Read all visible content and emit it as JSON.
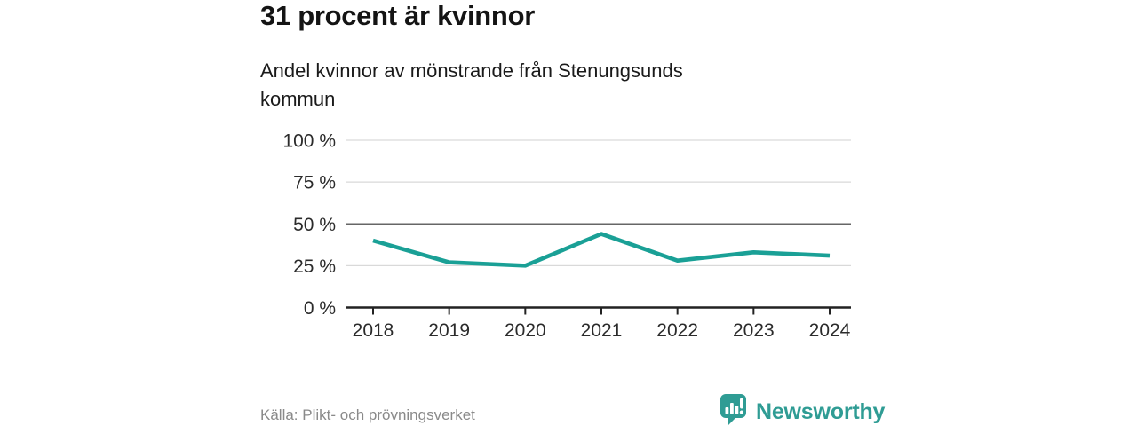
{
  "chart_data": {
    "type": "line",
    "title": "31 procent är kvinnor",
    "subtitle": "Andel kvinnor av mönstrande från Stenungsunds kommun",
    "x": [
      "2018",
      "2019",
      "2020",
      "2021",
      "2022",
      "2023",
      "2024"
    ],
    "series": [
      {
        "name": "Andel kvinnor av mönstrande",
        "values": [
          40,
          27,
          25,
          44,
          28,
          33,
          31
        ]
      }
    ],
    "unit": "%",
    "ylim": [
      0,
      100
    ],
    "yticks": [
      0,
      25,
      50,
      75,
      100
    ],
    "ytick_labels": [
      "0 %",
      "25 %",
      "50 %",
      "75 %",
      "100 %"
    ],
    "emphasized_gridline": 50,
    "grid": true,
    "legend": "none",
    "line_color": "#1aa096"
  },
  "footer": {
    "source": "Källa: Plikt- och prövningsverket",
    "brand_name": "Newsworthy",
    "logo_icon": "bar-chart-speech-bubble-icon"
  },
  "colors": {
    "accent_teal": "#1aa096",
    "brand_teal": "#2f9c94",
    "title_text": "#141414",
    "axis_text": "#2b2b2b",
    "muted_text": "#8a8a8a",
    "gridline": "#d9d9d9",
    "gridline_emphasis": "#666666",
    "axis_line": "#222222",
    "background": "#ffffff"
  }
}
